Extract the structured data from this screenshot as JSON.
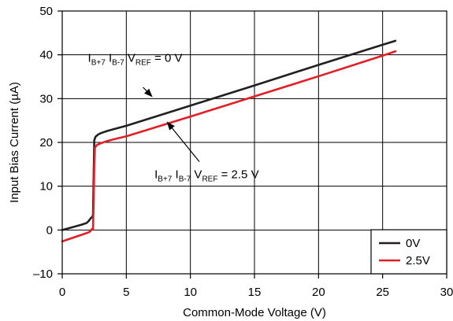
{
  "chart_data": {
    "type": "line",
    "title": "",
    "xlabel": "Common-Mode Voltage (V)",
    "ylabel": "Input Bias Current (µA)",
    "xlim": [
      0,
      30
    ],
    "ylim": [
      -10,
      50
    ],
    "xticks": [
      "0",
      "5",
      "10",
      "15",
      "20",
      "25",
      "30"
    ],
    "yticks": [
      "–10",
      "0",
      "10",
      "20",
      "30",
      "40",
      "50"
    ],
    "grid": true,
    "legend_position": "bottom-right",
    "series": [
      {
        "name": "0V",
        "color": "#231f20",
        "points": [
          [
            0,
            0
          ],
          [
            0.5,
            0.4
          ],
          [
            1.0,
            0.8
          ],
          [
            1.5,
            1.2
          ],
          [
            1.9,
            1.6
          ],
          [
            2.05,
            2.0
          ],
          [
            2.2,
            2.6
          ],
          [
            2.3,
            2.9
          ],
          [
            2.35,
            2.9
          ],
          [
            2.4,
            3.5
          ],
          [
            2.45,
            12
          ],
          [
            2.5,
            20.5
          ],
          [
            2.6,
            21.3
          ],
          [
            2.8,
            21.8
          ],
          [
            3.0,
            22.1
          ],
          [
            3.5,
            22.6
          ],
          [
            4.0,
            23.0
          ],
          [
            5,
            23.8
          ],
          [
            10,
            28.4
          ],
          [
            15,
            33.0
          ],
          [
            20,
            37.7
          ],
          [
            25,
            42.3
          ],
          [
            26,
            43.2
          ]
        ]
      },
      {
        "name": "2.5V",
        "color": "#e21f26",
        "points": [
          [
            0,
            -2.6
          ],
          [
            0.5,
            -2.1
          ],
          [
            1.0,
            -1.6
          ],
          [
            1.5,
            -1.1
          ],
          [
            2.0,
            -0.6
          ],
          [
            2.2,
            -0.3
          ],
          [
            2.3,
            0.2
          ],
          [
            2.4,
            0.2
          ],
          [
            2.45,
            6
          ],
          [
            2.5,
            15
          ],
          [
            2.55,
            18.8
          ],
          [
            2.7,
            19.4
          ],
          [
            3.0,
            19.8
          ],
          [
            3.5,
            20.3
          ],
          [
            4.0,
            20.7
          ],
          [
            5,
            21.4
          ],
          [
            10,
            25.9
          ],
          [
            15,
            30.5
          ],
          [
            20,
            35.1
          ],
          [
            25,
            39.8
          ],
          [
            26,
            40.8
          ]
        ]
      }
    ],
    "annotations": [
      {
        "parts": [
          {
            "text": "I",
            "style": "main"
          },
          {
            "text": "B+7",
            "style": "sub"
          },
          {
            "text": " I",
            "style": "main"
          },
          {
            "text": "B-7",
            "style": "sub"
          },
          {
            "text": " V",
            "style": "main"
          },
          {
            "text": "REF",
            "style": "sub"
          },
          {
            "text": " = 0 V",
            "style": "main"
          }
        ],
        "label_at": [
          2.0,
          38.4
        ],
        "arrow_from": [
          6.3,
          32.6
        ],
        "arrow_to": [
          7.0,
          30.5
        ]
      },
      {
        "parts": [
          {
            "text": "I",
            "style": "main"
          },
          {
            "text": "B+7",
            "style": "sub"
          },
          {
            "text": " I",
            "style": "main"
          },
          {
            "text": "B-7",
            "style": "sub"
          },
          {
            "text": " V",
            "style": "main"
          },
          {
            "text": "REF",
            "style": "sub"
          },
          {
            "text": " = 2.5 V",
            "style": "main"
          }
        ],
        "label_at": [
          7.2,
          11.8
        ],
        "arrow_from": [
          10.7,
          15.6
        ],
        "arrow_to": [
          8.2,
          24.6
        ]
      }
    ]
  }
}
